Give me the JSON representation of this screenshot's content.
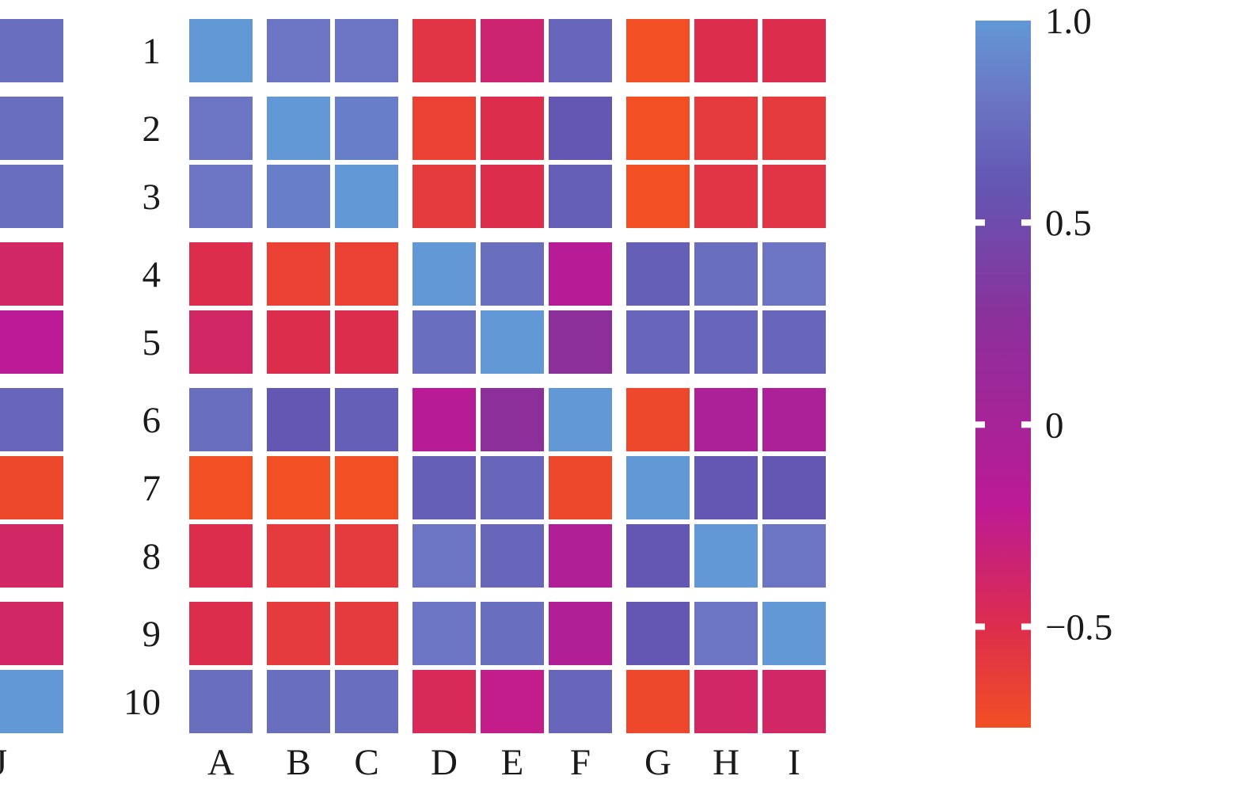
{
  "chart_data": {
    "type": "heatmap",
    "title": "",
    "xlabel": "",
    "ylabel": "",
    "x_categories": [
      "A",
      "B",
      "C",
      "D",
      "E",
      "F",
      "G",
      "H",
      "I",
      "J"
    ],
    "y_categories": [
      "1",
      "2",
      "3",
      "4",
      "5",
      "6",
      "7",
      "8",
      "9",
      "10"
    ],
    "values": [
      [
        1.0,
        0.8,
        0.8,
        -0.55,
        -0.35,
        0.7,
        -0.75,
        -0.5,
        -0.5,
        0.75
      ],
      [
        0.8,
        1.0,
        0.85,
        -0.65,
        -0.5,
        0.6,
        -0.75,
        -0.6,
        -0.6,
        0.75
      ],
      [
        0.8,
        0.85,
        1.0,
        -0.6,
        -0.5,
        0.65,
        -0.75,
        -0.55,
        -0.55,
        0.75
      ],
      [
        -0.5,
        -0.65,
        -0.65,
        1.0,
        0.75,
        -0.15,
        0.65,
        0.75,
        0.8,
        -0.4
      ],
      [
        -0.4,
        -0.5,
        -0.5,
        0.75,
        1.0,
        0.25,
        0.7,
        0.7,
        0.7,
        -0.2
      ],
      [
        0.75,
        0.6,
        0.65,
        -0.15,
        0.25,
        1.0,
        -0.7,
        -0.05,
        -0.05,
        0.7
      ],
      [
        -0.75,
        -0.75,
        -0.75,
        0.65,
        0.7,
        -0.7,
        1.0,
        0.6,
        0.6,
        -0.7
      ],
      [
        -0.5,
        -0.6,
        -0.6,
        0.8,
        0.7,
        -0.1,
        0.6,
        1.0,
        0.8,
        -0.4
      ],
      [
        -0.5,
        -0.6,
        -0.6,
        0.8,
        0.75,
        -0.1,
        0.6,
        0.8,
        1.0,
        -0.4
      ],
      [
        0.75,
        0.75,
        0.75,
        -0.45,
        -0.25,
        0.7,
        -0.7,
        -0.4,
        -0.4,
        1.0
      ]
    ],
    "x_groups": [
      1,
      2,
      3,
      3
    ],
    "y_groups": [
      1,
      2,
      2,
      3,
      3
    ],
    "colorbar": {
      "min": -0.75,
      "max": 1.0,
      "ticks": [
        1.0,
        0.5,
        0,
        -0.5
      ],
      "tick_labels": [
        "1.0",
        "0.5",
        "0",
        "−0.5"
      ],
      "colors": [
        {
          "v": -0.75,
          "c": "#f24f24"
        },
        {
          "v": -0.5,
          "c": "#dd2d4d"
        },
        {
          "v": -0.2,
          "c": "#bc1a96"
        },
        {
          "v": 0.25,
          "c": "#8c2f9a"
        },
        {
          "v": 0.6,
          "c": "#6357b3"
        },
        {
          "v": 0.8,
          "c": "#6b75c3"
        },
        {
          "v": 1.0,
          "c": "#6298d6"
        }
      ]
    },
    "grid": false,
    "legend": "right"
  }
}
